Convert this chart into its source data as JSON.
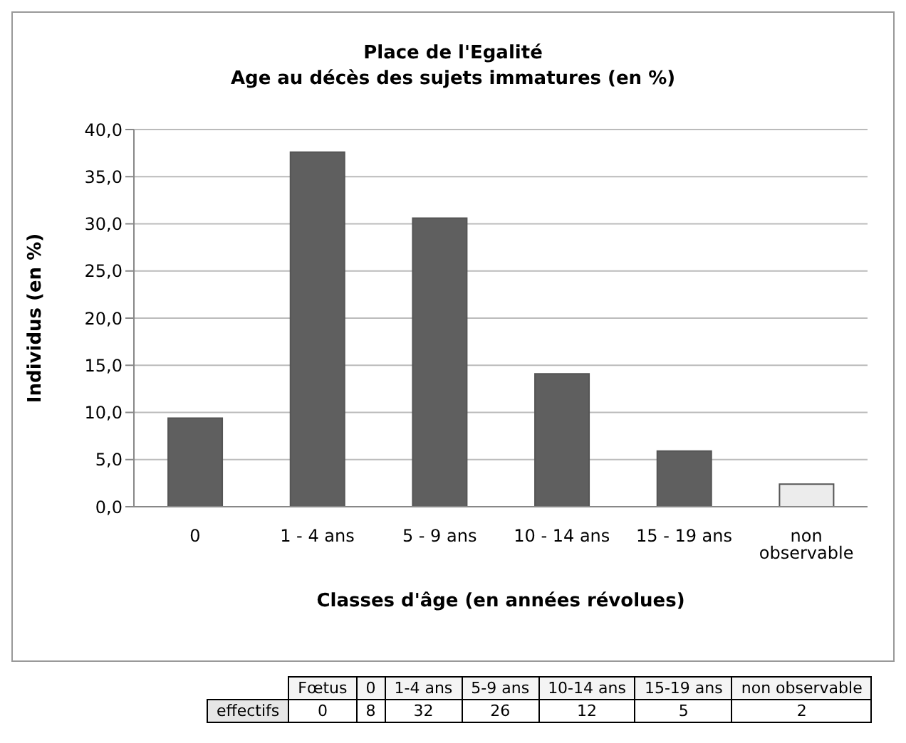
{
  "chart_data": [
    {
      "type": "bar",
      "title": "Place de l'Egalité",
      "subtitle": "Age au décès des sujets immatures (en %)",
      "xlabel": "Classes d'âge (en années révolues)",
      "ylabel": "Individus (en %)",
      "categories": [
        "0",
        "1 - 4 ans",
        "5 - 9 ans",
        "10 - 14 ans",
        "15 - 19 ans",
        "non observable"
      ],
      "values": [
        9.4,
        37.6,
        30.6,
        14.1,
        5.9,
        2.4
      ],
      "colors": [
        "#5f5f5f",
        "#5f5f5f",
        "#5f5f5f",
        "#5f5f5f",
        "#5f5f5f",
        "#ececec"
      ],
      "ylim": [
        0,
        40
      ],
      "yticks": [
        {
          "value": 0,
          "label": "0,0"
        },
        {
          "value": 5,
          "label": "5,0"
        },
        {
          "value": 10,
          "label": "10,0"
        },
        {
          "value": 15,
          "label": "15,0"
        },
        {
          "value": 20,
          "label": "20,0"
        },
        {
          "value": 25,
          "label": "25,0"
        },
        {
          "value": 30,
          "label": "30,0"
        },
        {
          "value": 35,
          "label": "35,0"
        },
        {
          "value": 40,
          "label": "40,0"
        }
      ],
      "grid": "y"
    },
    {
      "type": "other",
      "ylabel": "effectifs",
      "data_labels": true,
      "categories": [
        "Fœtus",
        "0",
        "1-4 ans",
        "5-9 ans",
        "10-14 ans",
        "15-19 ans",
        "non observable"
      ],
      "values": [
        0,
        8,
        32,
        26,
        12,
        5,
        2
      ]
    }
  ]
}
